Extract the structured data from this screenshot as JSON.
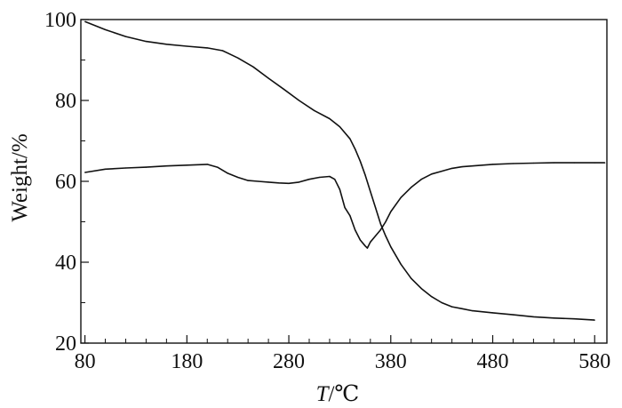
{
  "chart_data": {
    "type": "line",
    "xlabel_italic": "T",
    "xlabel_rest": "/℃",
    "ylabel": "Weight/%",
    "xlim": [
      76,
      592
    ],
    "ylim": [
      20,
      100
    ],
    "x_ticks": [
      80,
      180,
      280,
      380,
      480,
      580
    ],
    "x_minor_step": 20,
    "y_ticks": [
      20,
      40,
      60,
      80,
      100
    ],
    "y_minor_step": 10,
    "grid": false,
    "colors": {
      "line": "#111111",
      "axis": "#111111"
    },
    "series": [
      {
        "x": [
          80,
          100,
          120,
          140,
          160,
          180,
          200,
          215,
          230,
          245,
          260,
          275,
          290,
          305,
          320,
          330,
          340,
          345,
          350,
          355,
          360,
          365,
          370,
          375,
          380,
          390,
          400,
          410,
          420,
          430,
          440,
          450,
          460,
          480,
          500,
          520,
          540,
          560,
          580
        ],
        "values": [
          99.5,
          97.5,
          95.8,
          94.6,
          93.9,
          93.4,
          93.0,
          92.3,
          90.5,
          88.3,
          85.5,
          82.8,
          80.0,
          77.5,
          75.5,
          73.5,
          70.5,
          68.0,
          65.0,
          61.5,
          57.5,
          53.5,
          49.5,
          46.5,
          43.8,
          39.5,
          36.0,
          33.5,
          31.5,
          30.0,
          29.0,
          28.5,
          28.0,
          27.5,
          27.0,
          26.5,
          26.2,
          26.0,
          25.7
        ]
      },
      {
        "x": [
          80,
          100,
          120,
          140,
          160,
          180,
          200,
          210,
          220,
          230,
          240,
          250,
          260,
          270,
          280,
          290,
          300,
          310,
          320,
          325,
          330,
          335,
          340,
          345,
          350,
          355,
          357,
          360,
          365,
          370,
          375,
          380,
          390,
          400,
          410,
          420,
          430,
          440,
          450,
          460,
          480,
          500,
          520,
          540,
          560,
          580,
          590
        ],
        "values": [
          62.2,
          63.0,
          63.3,
          63.5,
          63.8,
          64.0,
          64.2,
          63.5,
          62.0,
          61.0,
          60.2,
          60.0,
          59.8,
          59.6,
          59.5,
          59.8,
          60.5,
          61.0,
          61.2,
          60.5,
          58.0,
          53.5,
          51.5,
          48.0,
          45.5,
          44.0,
          43.5,
          45.0,
          46.5,
          48.0,
          50.0,
          52.5,
          56.0,
          58.5,
          60.5,
          61.8,
          62.5,
          63.2,
          63.6,
          63.8,
          64.2,
          64.4,
          64.5,
          64.6,
          64.6,
          64.6,
          64.6
        ]
      }
    ]
  }
}
